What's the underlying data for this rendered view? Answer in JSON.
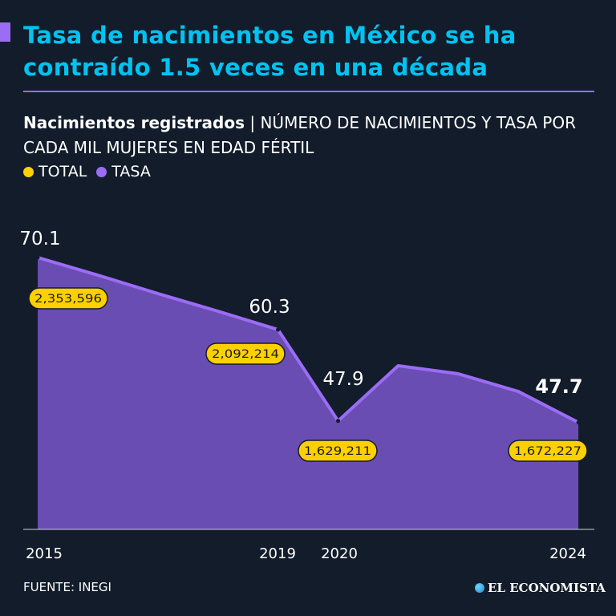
{
  "header": {
    "title": "Tasa de nacimientos en México se ha contraído 1.5 veces en una década"
  },
  "subtitle": {
    "bold": "Nacimientos registrados",
    "separator": "|",
    "rest": "NÚMERO DE NACIMIENTOS Y TASA POR CADA MIL MUJERES EN EDAD FÉRTIL"
  },
  "legend": [
    {
      "label": "TOTAL",
      "color": "#ffd000"
    },
    {
      "label": "TASA",
      "color": "#9b6cf5"
    }
  ],
  "chart_data": {
    "type": "area",
    "title": "Nacimientos registrados",
    "x": [
      2015,
      2016,
      2017,
      2018,
      2019,
      2020,
      2021,
      2022,
      2023,
      2024
    ],
    "x_tick_labels": [
      "2015",
      "2019",
      "2020",
      "2024"
    ],
    "series": [
      {
        "name": "TASA",
        "values": [
          70.1,
          67.7,
          65.2,
          62.8,
          60.3,
          47.9,
          55.4,
          54.3,
          51.9,
          47.7
        ],
        "color": "#9b6cf5"
      },
      {
        "name": "TOTAL",
        "values": [
          2353596,
          null,
          null,
          null,
          2092214,
          1629211,
          null,
          null,
          null,
          1672227
        ],
        "color": "#ffd000"
      }
    ],
    "rate_labels": [
      {
        "year": 2015,
        "text": "70.1"
      },
      {
        "year": 2019,
        "text": "60.3"
      },
      {
        "year": 2020,
        "text": "47.9"
      },
      {
        "year": 2024,
        "text": "47.7"
      }
    ],
    "total_labels": [
      {
        "year": 2015,
        "text": "2,353,596"
      },
      {
        "year": 2019,
        "text": "2,092,214"
      },
      {
        "year": 2020,
        "text": "1,629,211"
      },
      {
        "year": 2024,
        "text": "1,672,227"
      }
    ],
    "ylim": [
      33,
      72
    ],
    "grid": false,
    "legend_position": "top-left"
  },
  "footer": {
    "source": "FUENTE: INEGI",
    "logo": "EL ECONOMISTA"
  }
}
